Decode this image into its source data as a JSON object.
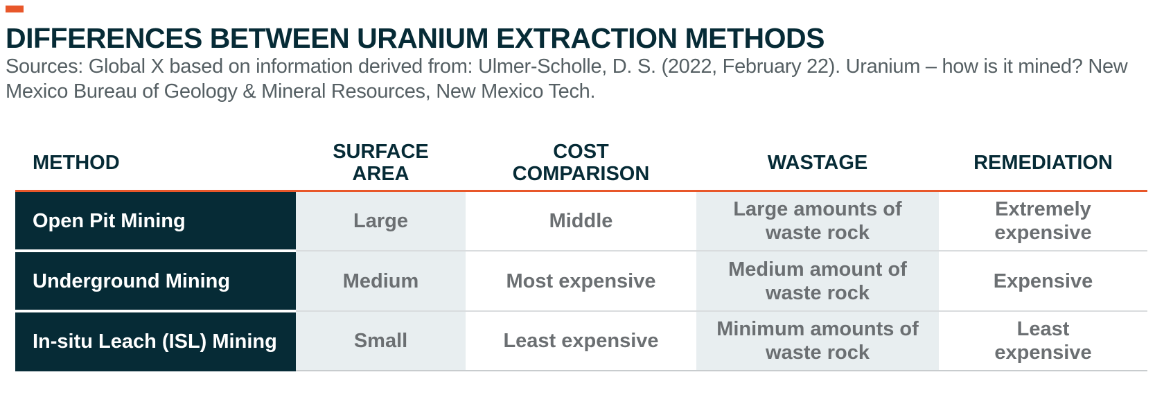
{
  "accent_color": "#E8572A",
  "header_color": "#062B36",
  "title": "DIFFERENCES BETWEEN URANIUM EXTRACTION METHODS",
  "subtitle": "Sources: Global X based on information derived from: Ulmer-Scholle, D. S. (2022, February 22). Uranium – how is it mined? New Mexico Bureau of Geology & Mineral Resources, New Mexico Tech.",
  "table": {
    "headers": {
      "method": "METHOD",
      "surface_area_1": "SURFACE",
      "surface_area_2": "AREA",
      "cost_1": "COST",
      "cost_2": "COMPARISON",
      "wastage": "WASTAGE",
      "remediation": "REMEDIATION"
    },
    "rows": [
      {
        "method": "Open Pit Mining",
        "surface_area": "Large",
        "cost": "Middle",
        "wastage_1": "Large amounts of",
        "wastage_2": "waste rock",
        "remediation_1": "Extremely",
        "remediation_2": "expensive"
      },
      {
        "method": "Underground Mining",
        "surface_area": "Medium",
        "cost": "Most expensive",
        "wastage_1": "Medium amount of",
        "wastage_2": "waste rock",
        "remediation_1": "Expensive",
        "remediation_2": ""
      },
      {
        "method": "In-situ Leach (ISL) Mining",
        "surface_area": "Small",
        "cost": "Least expensive",
        "wastage_1": "Minimum amounts of",
        "wastage_2": "waste rock",
        "remediation_1": "Least",
        "remediation_2": "expensive"
      }
    ]
  }
}
